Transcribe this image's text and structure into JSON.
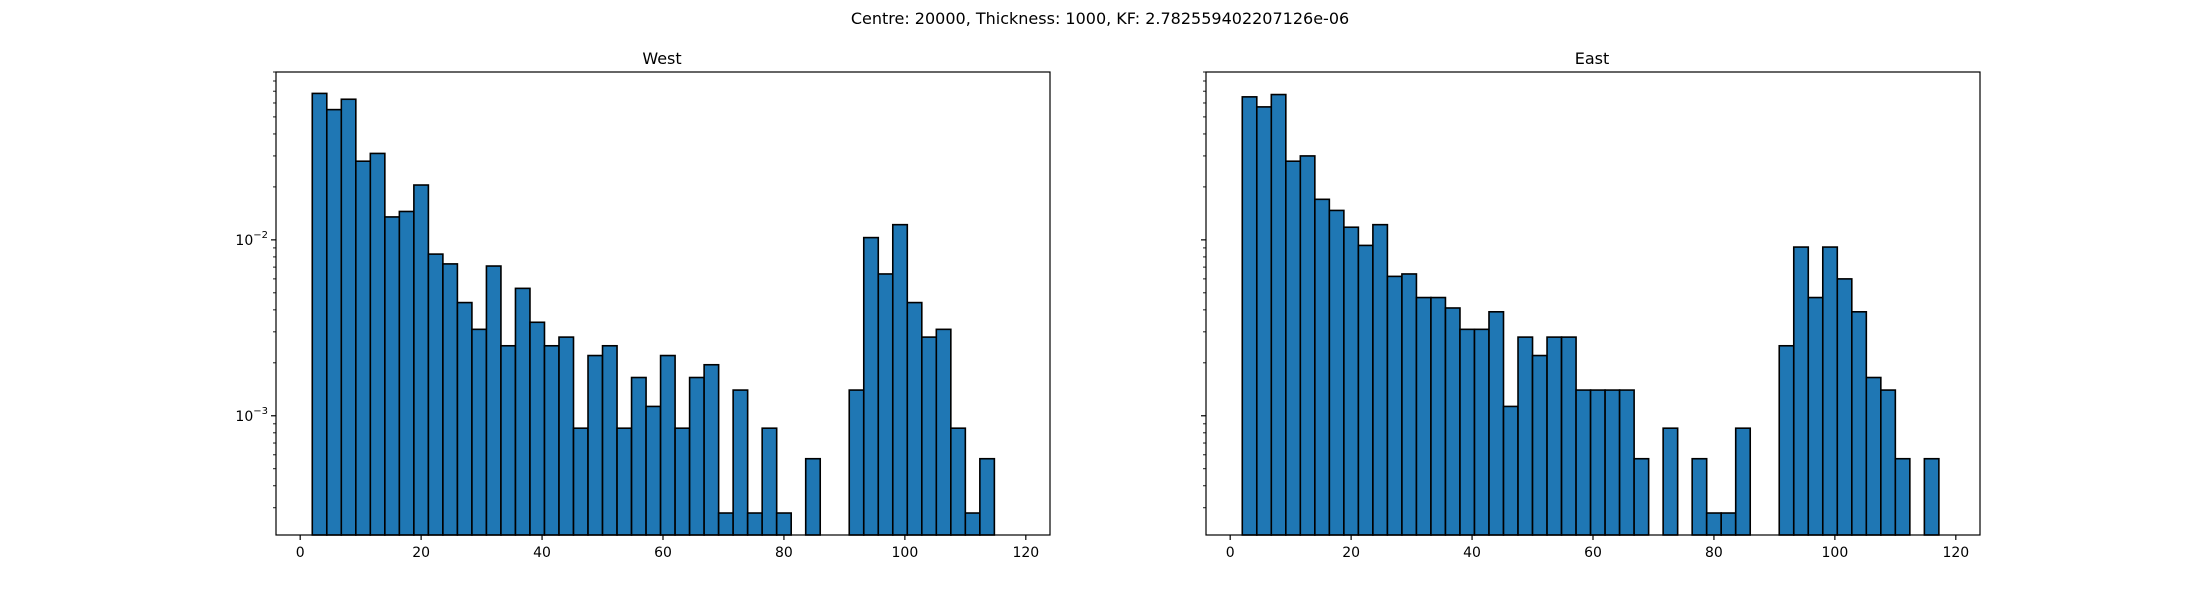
{
  "figure": {
    "suptitle": "Centre: 20000, Thickness: 1000, KF: 2.782559402207126e-06"
  },
  "style": {
    "bar_color": "#1f77b4",
    "edge_color": "#000000"
  },
  "chart_data": [
    {
      "type": "bar",
      "title": "West",
      "xlabel": "",
      "ylabel": "",
      "yscale": "log",
      "xlim": [
        -4,
        124
      ],
      "ylim": [
        0.00021,
        0.09
      ],
      "xticks": [
        0,
        20,
        40,
        60,
        80,
        100,
        120
      ],
      "yticks": [
        {
          "value": 0.01,
          "base": "10",
          "exp": "−2"
        },
        {
          "value": 0.001,
          "base": "10",
          "exp": "−3"
        }
      ],
      "bins": {
        "start": 2,
        "width": 2.4
      },
      "values": [
        0.068,
        0.055,
        0.063,
        0.028,
        0.031,
        0.0135,
        0.0145,
        0.0205,
        0.0083,
        0.0073,
        0.0044,
        0.0031,
        0.0071,
        0.0025,
        0.0053,
        0.0034,
        0.0025,
        0.0028,
        0.00085,
        0.0022,
        0.0025,
        0.00085,
        0.00165,
        0.00113,
        0.0022,
        0.00085,
        0.00165,
        0.00195,
        0.00028,
        0.0014,
        0.00028,
        0.00085,
        0.00028,
        null,
        0.00057,
        null,
        null,
        0.0014,
        0.0103,
        0.0064,
        0.0122,
        0.0044,
        0.0028,
        0.0031,
        0.00085,
        0.00028,
        0.00057
      ]
    },
    {
      "type": "bar",
      "title": "East",
      "xlabel": "",
      "ylabel": "",
      "yscale": "log",
      "xlim": [
        -4,
        124
      ],
      "ylim": [
        0.00021,
        0.09
      ],
      "xticks": [
        0,
        20,
        40,
        60,
        80,
        100,
        120
      ],
      "yticks": [],
      "bins": {
        "start": 2,
        "width": 2.4
      },
      "values": [
        0.065,
        0.057,
        0.067,
        0.028,
        0.03,
        0.017,
        0.0147,
        0.0118,
        0.0093,
        0.0122,
        0.0062,
        0.0064,
        0.0047,
        0.0047,
        0.0041,
        0.0031,
        0.0031,
        0.0039,
        0.00113,
        0.0028,
        0.0022,
        0.0028,
        0.0028,
        0.0014,
        0.0014,
        0.0014,
        0.0014,
        0.00057,
        null,
        0.00085,
        null,
        0.00057,
        0.00028,
        0.00028,
        0.00085,
        null,
        null,
        0.0025,
        0.0091,
        0.0047,
        0.0091,
        0.006,
        0.0039,
        0.00165,
        0.0014,
        0.00057,
        null,
        0.00057
      ]
    }
  ]
}
